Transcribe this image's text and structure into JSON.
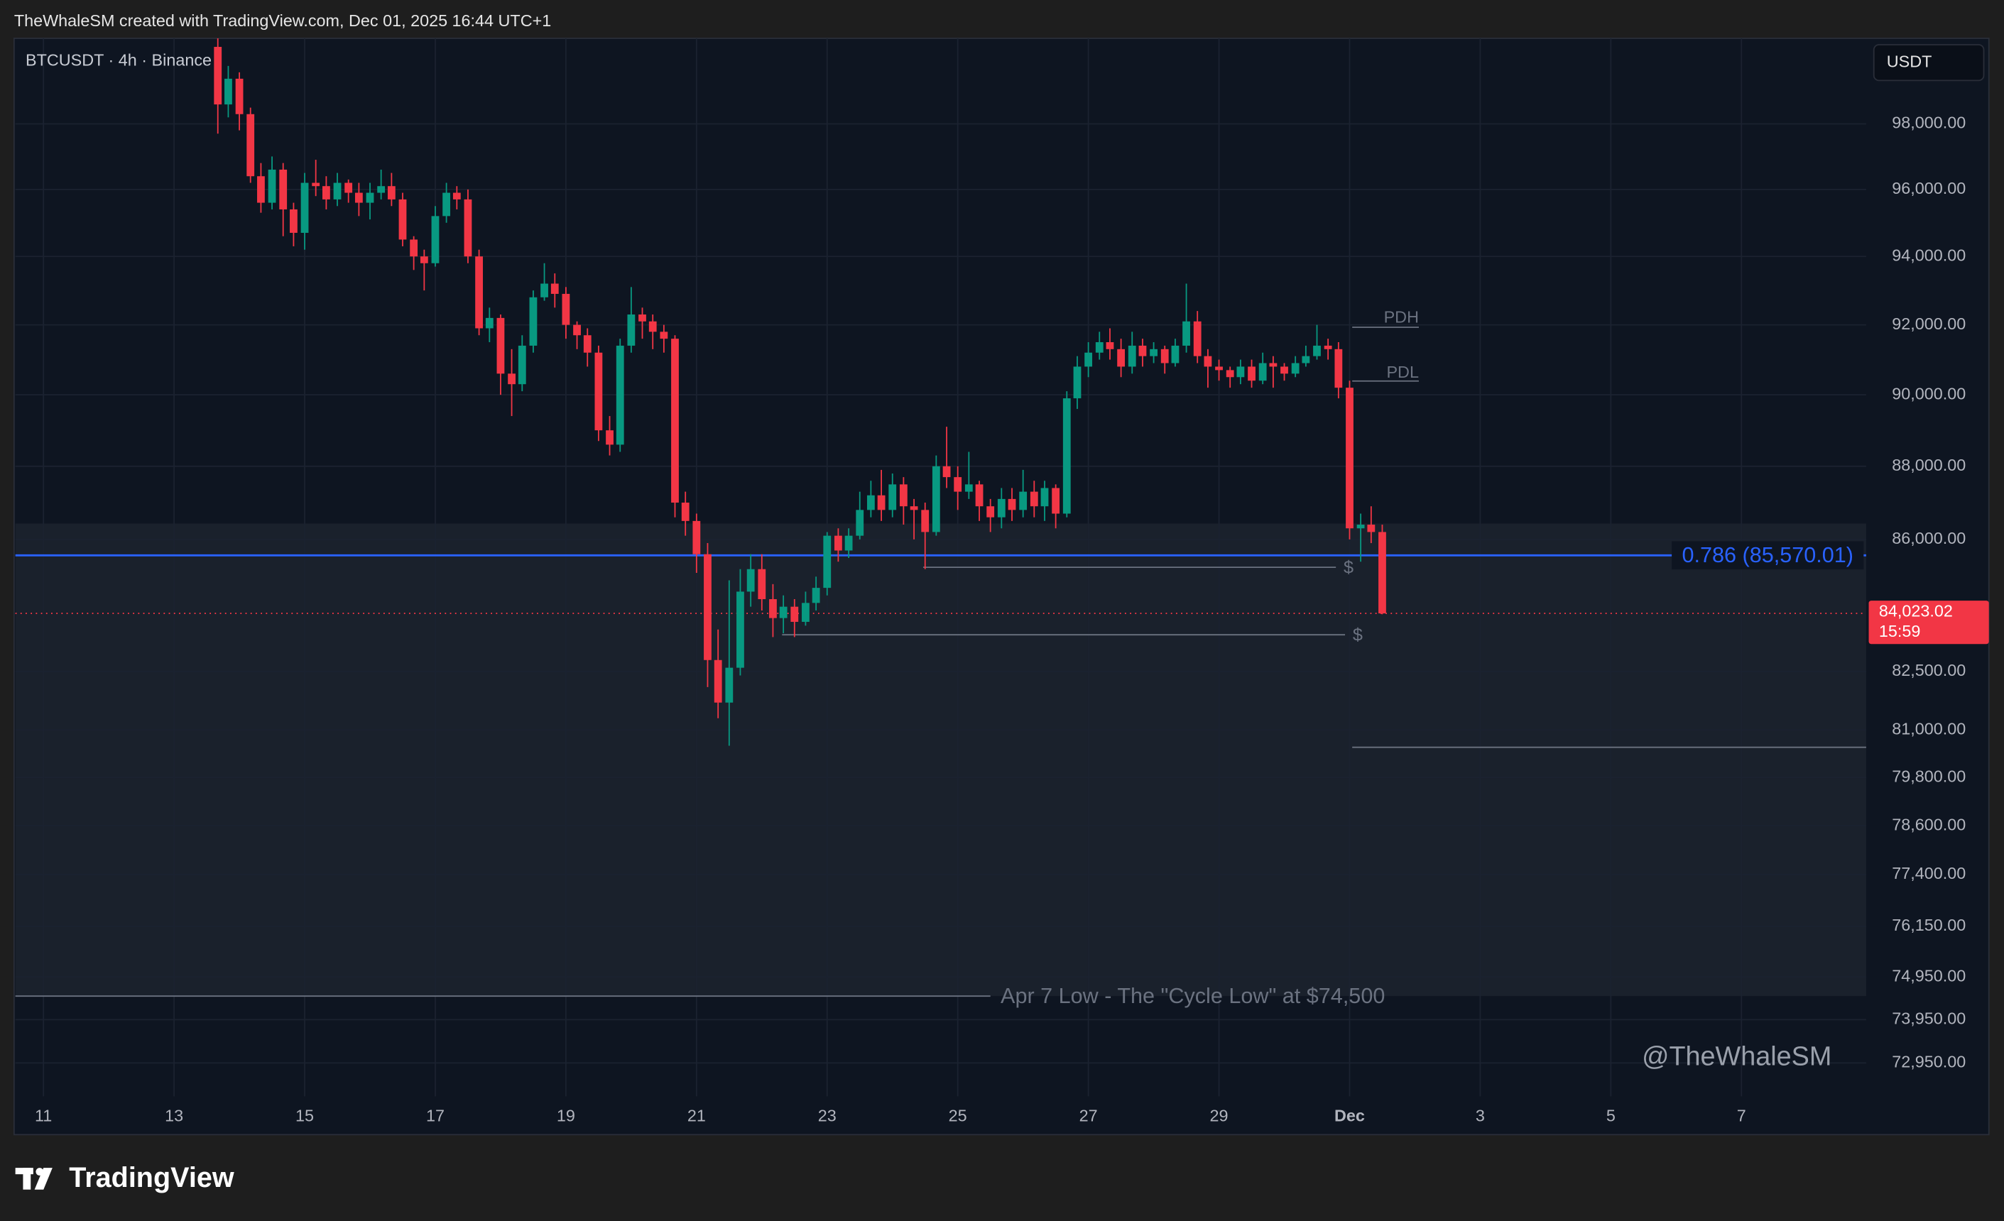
{
  "header": "TheWhaleSM created with TradingView.com, Dec 01, 2025 16:44 UTC+1",
  "brand": "TradingView",
  "chart_data": {
    "type": "candlestick",
    "symbol": "BTCUSDT · 4h · Binance",
    "currency": "USDT",
    "watermark": "@TheWhaleSM",
    "log_scale": true,
    "grid": true,
    "up_color": "#089981",
    "down_color": "#f23645",
    "xlim": [
      10.57,
      38.91
    ],
    "ylim": [
      72190,
      100670
    ],
    "xticks": [
      11,
      13,
      15,
      17,
      19,
      21,
      23,
      25,
      27,
      29,
      {
        "value": 31,
        "label": "Dec"
      },
      {
        "value": 33,
        "label": "3"
      },
      {
        "value": 35,
        "label": "5"
      },
      {
        "value": 37,
        "label": "7"
      }
    ],
    "yticks": [
      {
        "value": 98000,
        "label": "98,000.00"
      },
      {
        "value": 96000,
        "label": "96,000.00"
      },
      {
        "value": 94000,
        "label": "94,000.00"
      },
      {
        "value": 92000,
        "label": "92,000.00"
      },
      {
        "value": 90000,
        "label": "90,000.00"
      },
      {
        "value": 88000,
        "label": "88,000.00"
      },
      {
        "value": 86000,
        "label": "86,000.00"
      },
      {
        "value": 82500,
        "label": "82,500.00"
      },
      {
        "value": 81000,
        "label": "81,000.00"
      },
      {
        "value": 79800,
        "label": "79,800.00"
      },
      {
        "value": 78600,
        "label": "78,600.00"
      },
      {
        "value": 77400,
        "label": "77,400.00"
      },
      {
        "value": 76150,
        "label": "76,150.00"
      },
      {
        "value": 74950,
        "label": "74,950.00"
      },
      {
        "value": 73950,
        "label": "73,950.00"
      },
      {
        "value": 72950,
        "label": "72,950.00"
      }
    ],
    "x": [
      13.67,
      13.83,
      14,
      14.17,
      14.33,
      14.5,
      14.67,
      14.83,
      15,
      15.17,
      15.33,
      15.5,
      15.67,
      15.83,
      16,
      16.17,
      16.33,
      16.5,
      16.67,
      16.83,
      17,
      17.17,
      17.33,
      17.5,
      17.67,
      17.83,
      18,
      18.17,
      18.33,
      18.5,
      18.67,
      18.83,
      19,
      19.17,
      19.33,
      19.5,
      19.67,
      19.83,
      20,
      20.17,
      20.33,
      20.5,
      20.67,
      20.83,
      21,
      21.17,
      21.33,
      21.5,
      21.67,
      21.83,
      22,
      22.17,
      22.33,
      22.5,
      22.67,
      22.83,
      23,
      23.17,
      23.33,
      23.5,
      23.67,
      23.83,
      24,
      24.17,
      24.33,
      24.5,
      24.67,
      24.83,
      25,
      25.17,
      25.33,
      25.5,
      25.67,
      25.83,
      26,
      26.17,
      26.33,
      26.5,
      26.67,
      26.83,
      27,
      27.17,
      27.33,
      27.5,
      27.67,
      27.83,
      28,
      28.17,
      28.33,
      28.5,
      28.67,
      28.83,
      29,
      29.17,
      29.33,
      29.5,
      29.67,
      29.83,
      30,
      30.17,
      30.33,
      30.5,
      30.67,
      30.83,
      31,
      31.17,
      31.33,
      31.5
    ],
    "open": [
      100400,
      98600,
      99400,
      98300,
      96400,
      95600,
      96600,
      95400,
      94700,
      96200,
      96100,
      95700,
      96200,
      95900,
      95600,
      95900,
      96100,
      95700,
      94500,
      94000,
      93800,
      95200,
      95900,
      95700,
      94000,
      91900,
      92200,
      90600,
      90300,
      91400,
      92800,
      93200,
      92900,
      92000,
      91700,
      91200,
      89000,
      88600,
      91400,
      92300,
      92100,
      91800,
      91600,
      87000,
      86500,
      85600,
      82800,
      81700,
      82600,
      84600,
      85200,
      84400,
      83900,
      84200,
      83800,
      84300,
      84700,
      86100,
      85700,
      86100,
      86800,
      87200,
      86800,
      87500,
      86900,
      86800,
      86200,
      88000,
      87700,
      87300,
      87500,
      86900,
      86600,
      87100,
      86800,
      87300,
      86900,
      87400,
      86700,
      89900,
      90800,
      91200,
      91500,
      91300,
      90800,
      91400,
      91100,
      91300,
      90900,
      91400,
      92100,
      91100,
      90800,
      90700,
      90500,
      90800,
      90400,
      90900,
      90800,
      90600,
      90900,
      91100,
      91400,
      91300,
      90200,
      86300,
      86400,
      86200
    ],
    "high": [
      100670,
      99800,
      99600,
      98500,
      96800,
      97000,
      96800,
      95600,
      96500,
      96900,
      96400,
      96500,
      96300,
      96200,
      96200,
      96600,
      96500,
      95900,
      94600,
      94200,
      95500,
      96200,
      96100,
      96000,
      94200,
      92500,
      92300,
      91300,
      91700,
      93000,
      93800,
      93500,
      93100,
      92100,
      91900,
      91400,
      89400,
      91600,
      93100,
      92500,
      92300,
      92000,
      91700,
      87300,
      86700,
      85900,
      83600,
      84900,
      85200,
      85600,
      85600,
      84800,
      84500,
      84400,
      84600,
      85000,
      86200,
      86300,
      86300,
      87300,
      87600,
      87900,
      87800,
      87700,
      87100,
      87000,
      88300,
      89100,
      88000,
      88400,
      87600,
      87100,
      87400,
      87400,
      87900,
      87600,
      87600,
      87500,
      90100,
      91100,
      91500,
      91800,
      91900,
      91600,
      91800,
      91600,
      91500,
      91400,
      91600,
      93200,
      92400,
      91300,
      91000,
      90800,
      91000,
      91000,
      91200,
      91100,
      90900,
      91100,
      91400,
      92000,
      91600,
      91500,
      90400,
      86700,
      86900,
      86400
    ],
    "low": [
      97700,
      98200,
      97800,
      96200,
      95300,
      95400,
      94600,
      94300,
      94200,
      95800,
      95400,
      95500,
      95600,
      95200,
      95100,
      95700,
      95500,
      94300,
      93600,
      93000,
      93700,
      95000,
      95400,
      93800,
      91700,
      91500,
      90000,
      89400,
      90100,
      91200,
      92700,
      92500,
      91600,
      91300,
      90800,
      88700,
      88300,
      88400,
      91200,
      91600,
      91300,
      91200,
      86600,
      86100,
      85100,
      82100,
      81300,
      80600,
      82400,
      84200,
      84100,
      83400,
      83500,
      83400,
      83700,
      84100,
      84500,
      85400,
      85500,
      86000,
      86600,
      86500,
      86600,
      86400,
      86000,
      85200,
      86100,
      87400,
      86800,
      87100,
      86500,
      86200,
      86300,
      86500,
      86600,
      86600,
      86500,
      86300,
      86600,
      89600,
      90500,
      91000,
      91000,
      90500,
      90600,
      90800,
      90900,
      90600,
      90800,
      91200,
      90900,
      90200,
      90400,
      90200,
      90300,
      90200,
      90300,
      90200,
      90400,
      90500,
      90800,
      91000,
      91000,
      89900,
      86000,
      85400,
      85900,
      84000
    ],
    "close": [
      98600,
      99400,
      98300,
      96400,
      95600,
      96600,
      95400,
      94700,
      96200,
      96100,
      95700,
      96200,
      95900,
      95600,
      95900,
      96100,
      95700,
      94500,
      94000,
      93800,
      95200,
      95900,
      95700,
      94000,
      91900,
      92200,
      90600,
      90300,
      91400,
      92800,
      93200,
      92900,
      92000,
      91700,
      91200,
      89000,
      88600,
      91400,
      92300,
      92100,
      91800,
      91600,
      87000,
      86500,
      85600,
      82800,
      81700,
      82600,
      84600,
      85200,
      84400,
      83900,
      84200,
      83800,
      84300,
      84700,
      86100,
      85700,
      86100,
      86800,
      87200,
      86800,
      87500,
      86900,
      86800,
      86200,
      88000,
      87700,
      87300,
      87500,
      86900,
      86600,
      87100,
      86800,
      87300,
      86900,
      87400,
      86700,
      89900,
      90800,
      91200,
      91500,
      91300,
      90800,
      91400,
      91100,
      91300,
      90900,
      91400,
      92100,
      91100,
      90800,
      90700,
      90500,
      90800,
      90400,
      90900,
      90800,
      90600,
      90900,
      91100,
      91400,
      91300,
      90200,
      86300,
      86400,
      86200,
      84023.02
    ],
    "zone": [
      74500,
      86430
    ],
    "fib": {
      "value": 85570.01,
      "label": "0.786 (85,570.01)",
      "color": "#2962ff"
    },
    "last_price": {
      "value": 84023.02,
      "label": "84,023.02",
      "countdown": "15:59"
    },
    "pdh": {
      "label": "PDH",
      "value": 91930,
      "span": [
        31.04,
        32.06
      ]
    },
    "pdl": {
      "label": "PDL",
      "value": 90390,
      "span": [
        31.04,
        32.06
      ]
    },
    "liquidity": [
      {
        "label": "$",
        "value": 85250,
        "span": [
          24.47,
          30.79
        ]
      },
      {
        "label": "$",
        "value": 83460,
        "span": [
          22.31,
          30.93
        ]
      }
    ],
    "support": {
      "value": 80560,
      "span": [
        31.04,
        38.91
      ]
    },
    "cycle_low": {
      "label": "Apr 7 Low - The \"Cycle Low\" at $74,500",
      "value": 74500,
      "span": [
        10.57,
        25.5
      ]
    }
  }
}
